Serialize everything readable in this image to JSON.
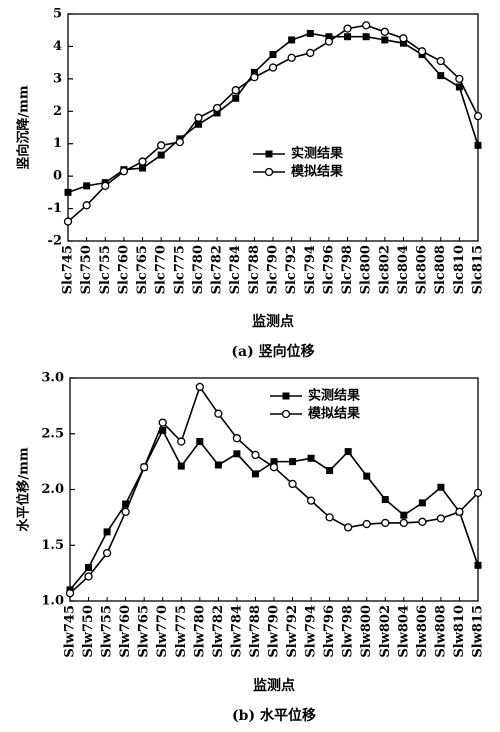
{
  "chart_data": [
    {
      "type": "line",
      "ylabel": "竖向沉降/mm",
      "xlabel": "监测点",
      "caption": "(a)  竖向位移",
      "categories": [
        "Slc745",
        "Slc750",
        "Slc755",
        "Slc760",
        "Slc765",
        "Slc770",
        "Slc775",
        "Slc780",
        "Slc782",
        "Slc784",
        "Slc788",
        "Slc790",
        "Slc792",
        "Slc794",
        "Slc796",
        "Slc798",
        "Slc800",
        "Slc802",
        "Slc804",
        "Slc806",
        "Slc808",
        "Slc810",
        "Slc815"
      ],
      "series": [
        {
          "name": "实测结果",
          "color": "#000000",
          "marker": "square",
          "values": [
            -0.5,
            -0.3,
            -0.2,
            0.2,
            0.25,
            0.65,
            1.15,
            1.6,
            1.95,
            2.4,
            3.2,
            3.75,
            4.2,
            4.4,
            4.3,
            4.3,
            4.3,
            4.2,
            4.1,
            3.75,
            3.1,
            2.75,
            0.95
          ]
        },
        {
          "name": "模拟结果",
          "color": "#000000",
          "marker": "circle",
          "values": [
            -1.4,
            -0.9,
            -0.3,
            0.15,
            0.45,
            0.95,
            1.05,
            1.8,
            2.1,
            2.65,
            3.05,
            3.35,
            3.65,
            3.8,
            4.15,
            4.55,
            4.65,
            4.45,
            4.25,
            3.85,
            3.55,
            3.0,
            1.85
          ]
        }
      ],
      "ylim": [
        -2,
        5
      ],
      "yticks": [
        -2,
        -1,
        0,
        1,
        2,
        3,
        4,
        5
      ],
      "legend": "center-right"
    },
    {
      "type": "line",
      "ylabel": "水平位移/mm",
      "xlabel": "监测点",
      "caption": "(b)  水平位移",
      "categories": [
        "Slw745",
        "Slw750",
        "Slw755",
        "Slw760",
        "Slw765",
        "Slw770",
        "Slw775",
        "Slw780",
        "Slw782",
        "Slw784",
        "Slw788",
        "Slw790",
        "Slw792",
        "Slw794",
        "Slw796",
        "Slw798",
        "Slw800",
        "Slw802",
        "Slw804",
        "Slw806",
        "Slw808",
        "Slw810",
        "Slw815"
      ],
      "series": [
        {
          "name": "实测结果",
          "color": "#000000",
          "marker": "square",
          "values": [
            1.1,
            1.3,
            1.62,
            1.87,
            2.2,
            2.53,
            2.21,
            2.43,
            2.22,
            2.32,
            2.14,
            2.25,
            2.25,
            2.28,
            2.17,
            2.34,
            2.12,
            1.91,
            1.77,
            1.88,
            2.02,
            1.8,
            1.32
          ]
        },
        {
          "name": "模拟结果",
          "color": "#000000",
          "marker": "circle",
          "values": [
            1.07,
            1.22,
            1.43,
            1.8,
            2.2,
            2.6,
            2.43,
            2.92,
            2.68,
            2.46,
            2.31,
            2.2,
            2.05,
            1.9,
            1.75,
            1.66,
            1.69,
            1.7,
            1.7,
            1.71,
            1.74,
            1.8,
            1.97
          ]
        }
      ],
      "ylim": [
        1.0,
        3.0
      ],
      "yticks": [
        {
          "value": 1.0,
          "label": "1.0"
        },
        1.5,
        {
          "value": 2.0,
          "label": "2.0"
        },
        2.5,
        {
          "value": 3.0,
          "label": "3.0"
        }
      ],
      "legend": "upper-right"
    }
  ]
}
